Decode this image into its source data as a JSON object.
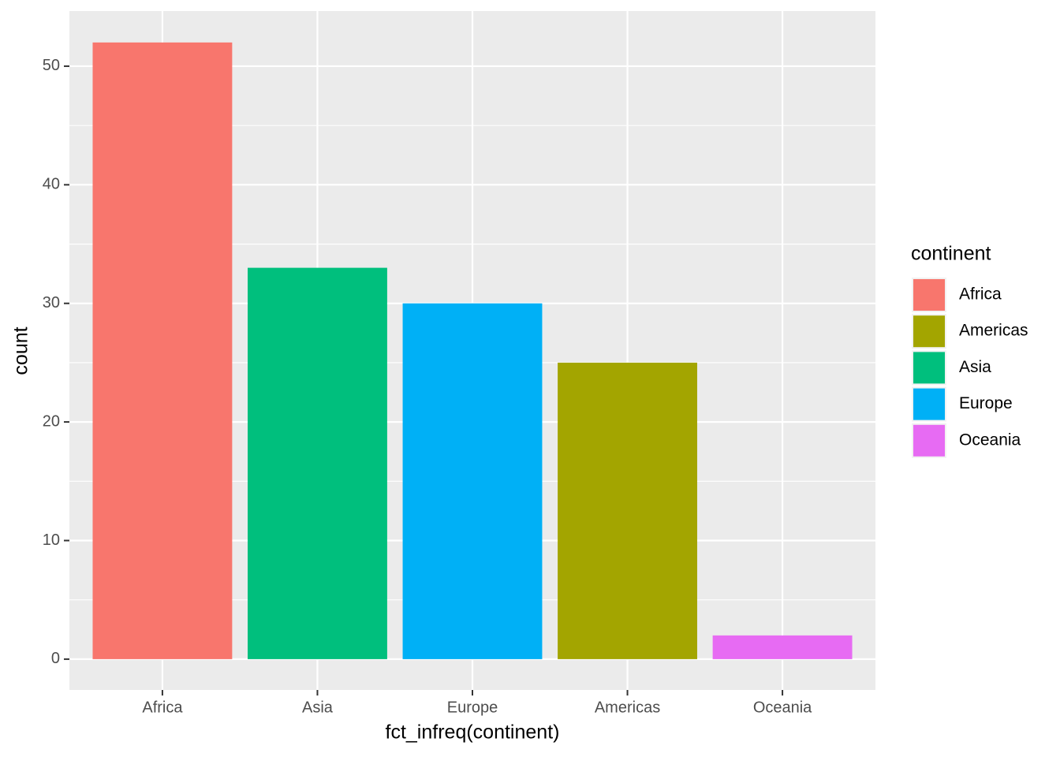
{
  "chart_data": {
    "type": "bar",
    "categories": [
      "Africa",
      "Asia",
      "Europe",
      "Americas",
      "Oceania"
    ],
    "values": [
      52,
      33,
      30,
      25,
      2
    ],
    "colors": [
      "#f8766d",
      "#00bf7d",
      "#00b0f6",
      "#a3a500",
      "#e76bf3"
    ],
    "x_label": "fct_infreq(continent)",
    "y_label": "count",
    "ylim": [
      -2.6,
      54.65
    ],
    "yticks": [
      0,
      10,
      20,
      30,
      40,
      50
    ],
    "yticks_minor": [
      5,
      15,
      25,
      35,
      45
    ],
    "grid": true,
    "legend": {
      "title": "continent",
      "position": "right",
      "items": [
        {
          "name": "Africa",
          "color": "#f8766d"
        },
        {
          "name": "Americas",
          "color": "#a3a500"
        },
        {
          "name": "Asia",
          "color": "#00bf7d"
        },
        {
          "name": "Europe",
          "color": "#00b0f6"
        },
        {
          "name": "Oceania",
          "color": "#e76bf3"
        }
      ]
    }
  }
}
